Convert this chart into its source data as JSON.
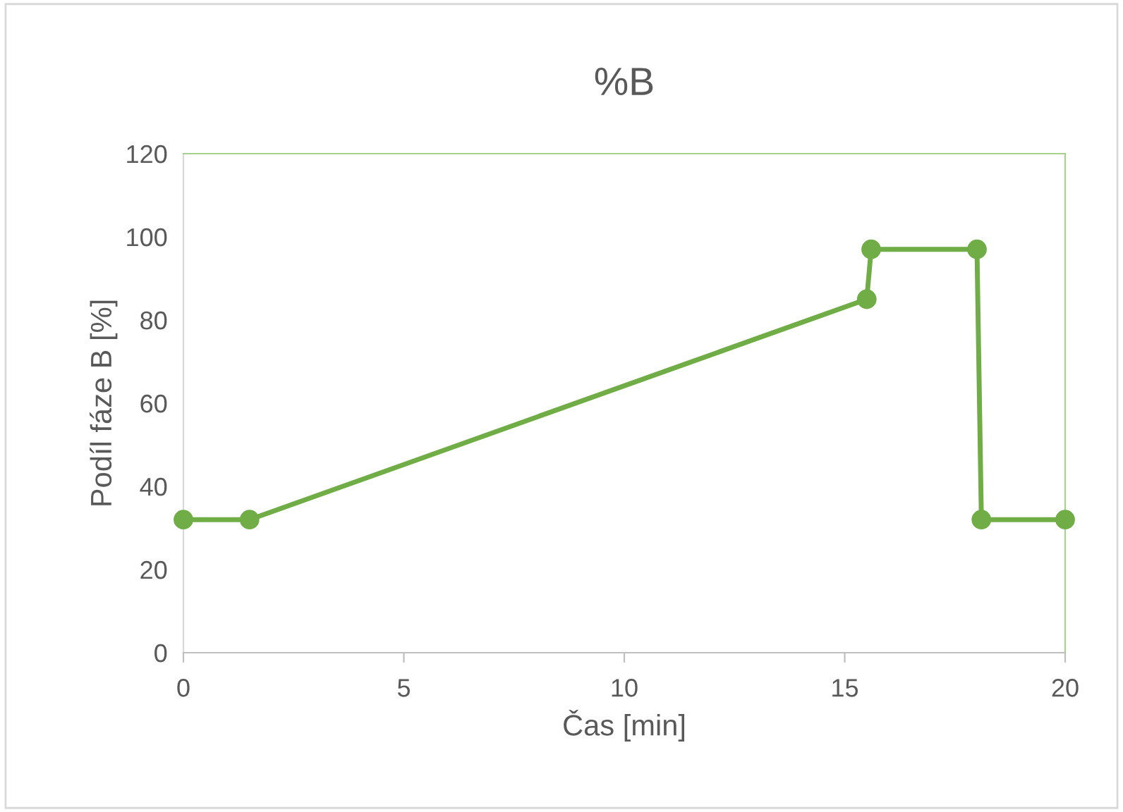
{
  "chart_data": {
    "type": "line",
    "title": "%B",
    "xlabel": "Čas [min]",
    "ylabel": "Podíl fáze B [%]",
    "series": [
      {
        "color": "#70ad47",
        "x": [
          0,
          1.5,
          15.5,
          15.6,
          18,
          18.1,
          20
        ],
        "values": [
          32,
          32,
          85,
          97,
          97,
          32,
          32
        ]
      }
    ],
    "xlim": [
      0,
      20
    ],
    "xticks": [
      0,
      5,
      10,
      15,
      20
    ],
    "ylim": [
      0,
      120
    ],
    "yticks": [
      0,
      20,
      40,
      60,
      80,
      100,
      120
    ],
    "grid": false,
    "legend": false,
    "marker": "circle",
    "line_style": "solid"
  }
}
